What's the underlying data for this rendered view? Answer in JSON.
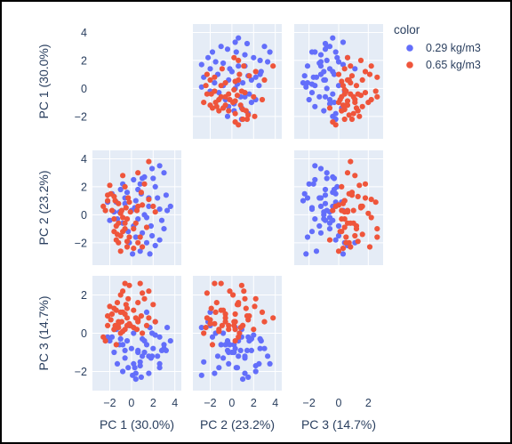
{
  "chart_data": {
    "type": "scatter",
    "subtype": "scatter-matrix",
    "dimensions": [
      "PC 1 (30.0%)",
      "PC 2 (23.2%)",
      "PC 3 (14.7%)"
    ],
    "diagonal_visible": false,
    "lower_triangle_visible": true,
    "upper_triangle_visible": true,
    "plot_background": "#e5ecf6",
    "grid": true,
    "legend": {
      "title": "color",
      "position": "top-right",
      "entries": [
        "0.29 kg/m3",
        "0.65 kg/m3"
      ]
    },
    "axis_ticks": {
      "PC 1 (30.0%)": {
        "range": [
          -3.6,
          4.6
        ],
        "ticks": [
          -2,
          0,
          2,
          4
        ],
        "tick_labels": [
          "−2",
          "0",
          "2",
          "4"
        ]
      },
      "PC 2 (23.2%)": {
        "range": [
          -3.6,
          4.6
        ],
        "ticks": [
          -2,
          0,
          2,
          4
        ],
        "tick_labels": [
          "−2",
          "0",
          "2",
          "4"
        ]
      },
      "PC 3 (14.7%)": {
        "range": [
          -3.0,
          3.0
        ],
        "ticks": [
          -2,
          0,
          2
        ],
        "tick_labels": [
          "−2",
          "0",
          "2"
        ]
      }
    },
    "series": [
      {
        "name": "0.29 kg/m3",
        "color": "#636efa",
        "points": [
          [
            2.6,
            3.5,
            -1.6
          ],
          [
            3.0,
            3.0,
            -0.8
          ],
          [
            1.9,
            3.3,
            -1.2
          ],
          [
            0.2,
            2.5,
            -1.6
          ],
          [
            -1.0,
            1.8,
            -0.3
          ],
          [
            -1.8,
            1.5,
            -0.2
          ],
          [
            1.2,
            2.7,
            -0.4
          ],
          [
            2.2,
            2.0,
            -0.1
          ],
          [
            0.8,
            2.2,
            -1.7
          ],
          [
            -0.4,
            1.6,
            -0.4
          ],
          [
            -1.4,
            0.9,
            0.2
          ],
          [
            -2.2,
            0.9,
            -0.2
          ],
          [
            -1.1,
            0.2,
            -0.6
          ],
          [
            -0.6,
            0.8,
            -0.9
          ],
          [
            0.4,
            1.0,
            -2.4
          ],
          [
            1.6,
            1.2,
            -2.1
          ],
          [
            2.6,
            0.4,
            -1.8
          ],
          [
            3.3,
            0.3,
            0.3
          ],
          [
            2.8,
            -0.4,
            -0.9
          ],
          [
            1.8,
            -0.8,
            -1.3
          ],
          [
            1.0,
            -1.3,
            -1.2
          ],
          [
            0.4,
            -1.6,
            -2.1
          ],
          [
            1.4,
            -2.0,
            1.1
          ],
          [
            2.2,
            -2.2,
            0.6
          ],
          [
            0.8,
            -2.6,
            -1.5
          ],
          [
            0.1,
            -2.8,
            -2.2
          ],
          [
            -0.3,
            -1.2,
            -1.8
          ],
          [
            1.9,
            -1.5,
            0.0
          ],
          [
            3.6,
            0.6,
            -0.4
          ],
          [
            -0.8,
            -0.6,
            -0.6
          ],
          [
            -1.6,
            0.2,
            -1.0
          ],
          [
            0.0,
            0.3,
            -0.8
          ],
          [
            0.6,
            -0.3,
            -1.0
          ],
          [
            1.4,
            -0.2,
            -0.6
          ],
          [
            0.3,
            0.5,
            -1.8
          ],
          [
            2.4,
            1.2,
            -1.2
          ],
          [
            1.0,
            2.6,
            -0.3
          ],
          [
            -0.2,
            -2.0,
            0.4
          ],
          [
            2.6,
            -1.8,
            -0.2
          ],
          [
            1.6,
            0.6,
            -1.2
          ],
          [
            3.0,
            -1.0,
            -0.6
          ],
          [
            -0.6,
            1.2,
            -1.3
          ],
          [
            0.6,
            1.8,
            -0.9
          ],
          [
            -1.3,
            -0.3,
            -1.6
          ],
          [
            2.0,
            2.6,
            -0.8
          ],
          [
            -0.8,
            2.2,
            -2.0
          ],
          [
            1.2,
            0.0,
            -1.0
          ],
          [
            0.2,
            -0.8,
            0.0
          ],
          [
            3.2,
            1.4,
            -0.9
          ],
          [
            -2.0,
            -0.4,
            -0.4
          ],
          [
            0.9,
            1.5,
            -2.3
          ],
          [
            1.7,
            -2.8,
            0.3
          ]
        ]
      },
      {
        "name": "0.65 kg/m3",
        "color": "#ef553b",
        "points": [
          [
            -1.5,
            1.0,
            0.4
          ],
          [
            -0.5,
            0.5,
            1.5
          ],
          [
            -1.2,
            0.8,
            0.3
          ],
          [
            0.6,
            0.6,
            1.6
          ],
          [
            -2.4,
            0.3,
            -0.4
          ],
          [
            -2.2,
            1.0,
            0.4
          ],
          [
            -2.6,
            0.6,
            -0.2
          ],
          [
            -0.8,
            -0.2,
            2.2
          ],
          [
            -1.2,
            -0.6,
            0.6
          ],
          [
            -1.6,
            -1.2,
            0.2
          ],
          [
            -1.4,
            -1.8,
            -0.6
          ],
          [
            -1.0,
            -1.5,
            1.1
          ],
          [
            -0.6,
            -1.0,
            2.6
          ],
          [
            -0.4,
            -2.3,
            0.8
          ],
          [
            -0.2,
            -1.6,
            0.5
          ],
          [
            -1.0,
            -2.6,
            0.0
          ],
          [
            -1.4,
            -0.8,
            1.2
          ],
          [
            -0.8,
            -1.2,
            0.1
          ],
          [
            0.2,
            -1.0,
            1.2
          ],
          [
            0.8,
            -1.6,
            2.6
          ],
          [
            1.0,
            -2.3,
            2.1
          ],
          [
            0.6,
            -2.0,
            0.7
          ],
          [
            1.6,
            1.1,
            2.2
          ],
          [
            2.0,
            0.6,
            1.5
          ],
          [
            1.6,
            3.8,
            0.8
          ],
          [
            0.6,
            3.0,
            0.6
          ],
          [
            -0.8,
            2.8,
            1.1
          ],
          [
            -1.9,
            1.5,
            0.7
          ],
          [
            -2.0,
            2.1,
            1.4
          ],
          [
            1.0,
            0.7,
            0.0
          ],
          [
            -0.3,
            1.2,
            1.8
          ],
          [
            -1.0,
            0.1,
            2.0
          ],
          [
            -1.8,
            0.3,
            1.0
          ],
          [
            -0.4,
            -0.3,
            0.4
          ],
          [
            -1.2,
            -2.0,
            0.5
          ],
          [
            -0.6,
            -0.6,
            1.0
          ],
          [
            0.4,
            -0.6,
            0.8
          ],
          [
            -0.6,
            2.0,
            0.2
          ],
          [
            -1.6,
            1.3,
            1.3
          ],
          [
            2.2,
            0.2,
            0.6
          ],
          [
            1.4,
            -0.9,
            0.4
          ],
          [
            0.2,
            -2.4,
            0.3
          ],
          [
            -0.2,
            0.9,
            2.5
          ],
          [
            -1.3,
            -1.4,
            1.6
          ],
          [
            0.9,
            1.6,
            0.9
          ],
          [
            -2.2,
            1.4,
            0.9
          ],
          [
            -0.4,
            -1.9,
            1.3
          ],
          [
            0.5,
            0.3,
            0.2
          ],
          [
            -0.9,
            0.3,
            0.6
          ],
          [
            1.2,
            2.2,
            1.8
          ],
          [
            -1.6,
            -0.3,
            0.2
          ],
          [
            -0.1,
            0.2,
            0.4
          ]
        ]
      }
    ]
  }
}
